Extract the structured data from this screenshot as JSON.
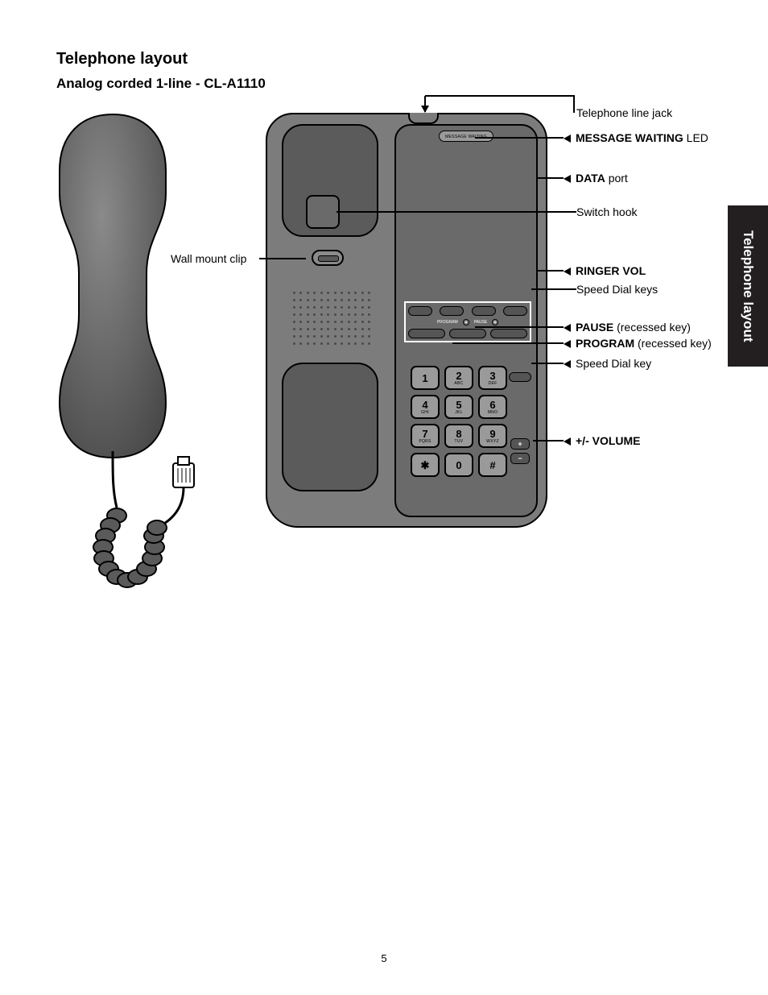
{
  "title": "Telephone layout",
  "subtitle": "Analog corded 1-line - CL-A1110",
  "side_tab": "Telephone layout",
  "page_number": "5",
  "msg_waiting_label": "MESSAGE WAITING",
  "callouts": {
    "line_jack": "Telephone line jack",
    "msg_led_bold": "MESSAGE WAITING",
    "msg_led_rest": " LED",
    "data_bold": "DATA",
    "data_rest": " port",
    "switch_hook": "Switch hook",
    "ringer_bold": "RINGER VOL",
    "speed_keys": "Speed Dial keys",
    "pause_bold": "PAUSE",
    "pause_rest": " (recessed key)",
    "program_bold": "PROGRAM",
    "program_rest": " (recessed key)",
    "speed_key": "Speed Dial key",
    "volume": "+/- VOLUME",
    "wall_clip": "Wall mount clip"
  },
  "keypad_numbers": [
    "1",
    "2",
    "3",
    "4",
    "5",
    "6",
    "7",
    "8",
    "9",
    "✱",
    "0",
    "#"
  ],
  "keypad_sub": [
    "",
    "ABC",
    "DEF",
    "GHI",
    "JKL",
    "MNO",
    "PQRS",
    "TUV",
    "WXYZ",
    "",
    "",
    ""
  ],
  "pp_labels": [
    "PROGRAM",
    "PAUSE"
  ],
  "vol_plus": "+",
  "vol_minus": "−",
  "colors": {
    "body_gray": "#7c7c7c",
    "face_gray": "#6a6a6a",
    "dark_gray": "#5b5b5b",
    "key_gray": "#9a9a9a",
    "black": "#000000",
    "white": "#ffffff"
  }
}
